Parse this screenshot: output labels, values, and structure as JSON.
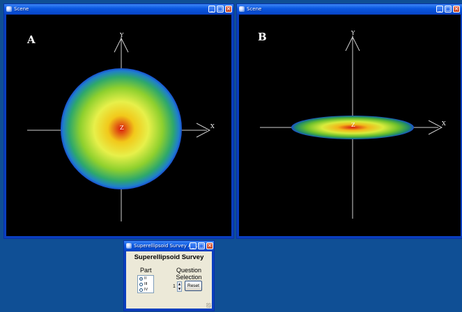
{
  "scene_a": {
    "title": "Scene",
    "panel_label": "A",
    "axis_x": "X",
    "axis_y": "Y",
    "axis_z": "Z"
  },
  "scene_b": {
    "title": "Scene",
    "panel_label": "B",
    "axis_x": "X",
    "axis_y": "Y",
    "axis_z": "Z"
  },
  "dialog": {
    "title": "Superellipsoid Survey Ap...",
    "heading": "Superellipsoid Survey",
    "part_label": "Part",
    "part_options": [
      "II",
      "III",
      "IV"
    ],
    "part_selected": "II",
    "question_label": "Question Selection",
    "question_value": "1",
    "reset_label": "Reset"
  },
  "window_buttons": {
    "minimize": "_",
    "maximize": "□",
    "close": "×"
  },
  "colors": {
    "desktop": "#0f4f95",
    "titlebar": "#0a57e0",
    "canvas": "#000000",
    "dialog_body": "#ece9d8"
  }
}
